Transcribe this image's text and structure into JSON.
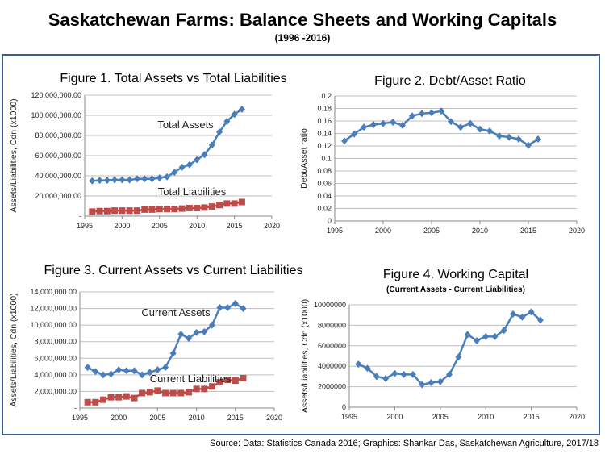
{
  "header": {
    "title": "Saskatchewan Farms: Balance Sheets and Working Capitals",
    "subtitle": "(1996 -2016)"
  },
  "footer": {
    "source": "Source:   Data: Statistics Canada 2016; Graphics: Shankar Das, Saskatchewan Agriculture, 2017/18"
  },
  "colors": {
    "blue": "#4a7ebb",
    "red": "#be4b48",
    "grid": "#bfbfbf",
    "frame": "#3a5f8c"
  },
  "chart_data": [
    {
      "type": "line",
      "title": "Figure 1. Total Assets vs Total Liabilities",
      "subtitle": "",
      "xlabel": "",
      "ylabel": "Assets/Liabilities, Cdn (x1000)",
      "xlim": [
        1995,
        2020
      ],
      "xticks": [
        "1995",
        "2000",
        "2005",
        "2010",
        "2015",
        "2020"
      ],
      "ylim": [
        0,
        120000000
      ],
      "yticks": [
        "-",
        "20,000,000.00",
        "40,000,000.00",
        "60,000,000.00",
        "80,000,000.00",
        "100,000,000.00",
        "120,000,000.00"
      ],
      "x": [
        1996,
        1997,
        1998,
        1999,
        2000,
        2001,
        2002,
        2003,
        2004,
        2005,
        2006,
        2007,
        2008,
        2009,
        2010,
        2011,
        2012,
        2013,
        2014,
        2015,
        2016
      ],
      "series": [
        {
          "name": "Total Assets",
          "marker": "diamond",
          "values": [
            35000000,
            35500000,
            35500000,
            36000000,
            36000000,
            36000000,
            37000000,
            37000000,
            37000000,
            38000000,
            39000000,
            43500000,
            48500000,
            51000000,
            56000000,
            61000000,
            70500000,
            83500000,
            94000000,
            101000000,
            106000000
          ]
        },
        {
          "name": "Total Liabilities",
          "marker": "square",
          "values": [
            4500000,
            5000000,
            5000000,
            5500000,
            5500000,
            5500000,
            5500000,
            6500000,
            6500000,
            7000000,
            7000000,
            7000000,
            7500000,
            8000000,
            8000000,
            8500000,
            9500000,
            11000000,
            12500000,
            12500000,
            14000000
          ]
        }
      ],
      "grid": true
    },
    {
      "type": "line",
      "title": "Figure 2. Debt/Asset Ratio",
      "subtitle": "",
      "xlabel": "",
      "ylabel": "Debt/Asset ratio",
      "xlim": [
        1995,
        2020
      ],
      "xticks": [
        "1995",
        "2000",
        "2005",
        "2010",
        "2015",
        "2020"
      ],
      "ylim": [
        0,
        0.2
      ],
      "yticks": [
        "0",
        "0.02",
        "0.04",
        "0.06",
        "0.08",
        "0.1",
        "0.12",
        "0.14",
        "0.16",
        "0.18",
        "0.2"
      ],
      "x": [
        1996,
        1997,
        1998,
        1999,
        2000,
        2001,
        2002,
        2003,
        2004,
        2005,
        2006,
        2007,
        2008,
        2009,
        2010,
        2011,
        2012,
        2013,
        2014,
        2015,
        2016
      ],
      "series": [
        {
          "name": "Debt/Asset ratio",
          "marker": "diamond",
          "values": [
            0.128,
            0.139,
            0.15,
            0.154,
            0.156,
            0.158,
            0.153,
            0.168,
            0.172,
            0.173,
            0.176,
            0.159,
            0.15,
            0.156,
            0.147,
            0.144,
            0.136,
            0.134,
            0.131,
            0.121,
            0.131
          ]
        }
      ],
      "grid": true
    },
    {
      "type": "line",
      "title": "Figure 3. Current Assets vs Current Liabilities",
      "subtitle": "",
      "xlabel": "",
      "ylabel": "Assets/Liabilities, Cdn (x1000)",
      "xlim": [
        1995,
        2020
      ],
      "xticks": [
        "1995",
        "2000",
        "2005",
        "2010",
        "2015",
        "2020"
      ],
      "ylim": [
        0,
        14000000
      ],
      "yticks": [
        "-",
        "2,000,000.00",
        "4,000,000.00",
        "6,000,000.00",
        "8,000,000.00",
        "10,000,000.00",
        "12,000,000.00",
        "14,000,000.00"
      ],
      "x": [
        1996,
        1997,
        1998,
        1999,
        2000,
        2001,
        2002,
        2003,
        2004,
        2005,
        2006,
        2007,
        2008,
        2009,
        2010,
        2011,
        2012,
        2013,
        2014,
        2015,
        2016
      ],
      "series": [
        {
          "name": "Current Assets",
          "marker": "diamond",
          "values": [
            4900000,
            4400000,
            4000000,
            4100000,
            4600000,
            4500000,
            4500000,
            4000000,
            4300000,
            4600000,
            4900000,
            6600000,
            8900000,
            8400000,
            9100000,
            9200000,
            10000000,
            12100000,
            12100000,
            12600000,
            12000000
          ]
        },
        {
          "name": "Current Liabilities",
          "marker": "square",
          "values": [
            700000,
            700000,
            1000000,
            1300000,
            1300000,
            1400000,
            1200000,
            1800000,
            1900000,
            2100000,
            1800000,
            1800000,
            1800000,
            1900000,
            2300000,
            2300000,
            2600000,
            3100000,
            3400000,
            3300000,
            3600000
          ]
        }
      ],
      "grid": true
    },
    {
      "type": "line",
      "title": "Figure 4. Working Capital",
      "subtitle": "(Current Assets - Current Liabilities)",
      "xlabel": "",
      "ylabel": "Assets/Liabilities, Cdn (x1000)",
      "xlim": [
        1995,
        2020
      ],
      "xticks": [
        "1995",
        "2000",
        "2005",
        "2010",
        "2015",
        "2020"
      ],
      "ylim": [
        0,
        10000000
      ],
      "yticks": [
        "0",
        "2000000",
        "4000000",
        "6000000",
        "8000000",
        "10000000"
      ],
      "x": [
        1996,
        1997,
        1998,
        1999,
        2000,
        2001,
        2002,
        2003,
        2004,
        2005,
        2006,
        2007,
        2008,
        2009,
        2010,
        2011,
        2012,
        2013,
        2014,
        2015,
        2016
      ],
      "series": [
        {
          "name": "Working Capital",
          "marker": "diamond",
          "values": [
            4200000,
            3800000,
            3000000,
            2800000,
            3300000,
            3200000,
            3200000,
            2200000,
            2400000,
            2500000,
            3200000,
            4900000,
            7100000,
            6500000,
            6900000,
            6900000,
            7500000,
            9100000,
            8800000,
            9300000,
            8500000
          ]
        }
      ],
      "grid": true
    }
  ]
}
